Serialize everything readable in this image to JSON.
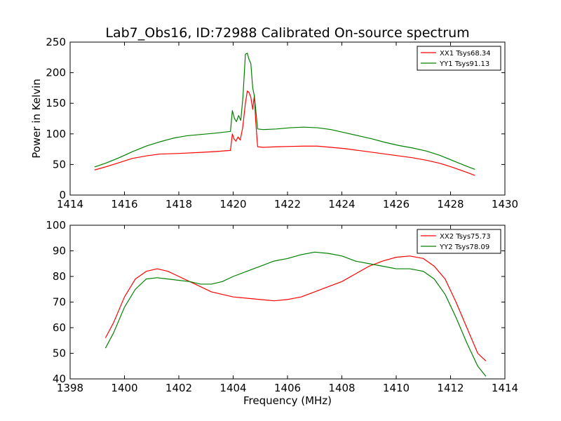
{
  "title": "Lab7_Obs16, ID:72988 Calibrated On-source spectrum",
  "chart_data": [
    {
      "type": "line",
      "ylabel": "Power in Kelvin",
      "xlabel": "",
      "xlim": [
        1414,
        1430
      ],
      "ylim": [
        0,
        250
      ],
      "xticks": [
        1414,
        1416,
        1418,
        1420,
        1422,
        1424,
        1426,
        1428,
        1430
      ],
      "yticks": [
        0,
        50,
        100,
        150,
        200,
        250
      ],
      "grid": false,
      "legend": "top-right",
      "series": [
        {
          "name": "XX1 Tsys68.34",
          "color": "#ff0000",
          "points": [
            [
              1414.9,
              41
            ],
            [
              1415.3,
              46
            ],
            [
              1415.8,
              53
            ],
            [
              1416.3,
              60
            ],
            [
              1416.8,
              64
            ],
            [
              1417.3,
              67
            ],
            [
              1418.0,
              68
            ],
            [
              1418.7,
              69.5
            ],
            [
              1419.3,
              71
            ],
            [
              1419.9,
              73
            ],
            [
              1419.97,
              100
            ],
            [
              1420.03,
              92
            ],
            [
              1420.1,
              88
            ],
            [
              1420.18,
              95
            ],
            [
              1420.26,
              90
            ],
            [
              1420.35,
              110
            ],
            [
              1420.45,
              150
            ],
            [
              1420.52,
              170
            ],
            [
              1420.58,
              168
            ],
            [
              1420.65,
              160
            ],
            [
              1420.72,
              140
            ],
            [
              1420.78,
              163
            ],
            [
              1420.83,
              120
            ],
            [
              1420.9,
              79
            ],
            [
              1421.1,
              78
            ],
            [
              1421.6,
              79
            ],
            [
              1422.1,
              79.5
            ],
            [
              1422.6,
              80
            ],
            [
              1423.1,
              80
            ],
            [
              1423.6,
              78
            ],
            [
              1424.1,
              76
            ],
            [
              1424.6,
              73
            ],
            [
              1425.1,
              70
            ],
            [
              1425.6,
              67
            ],
            [
              1426.1,
              64
            ],
            [
              1426.6,
              61
            ],
            [
              1427.1,
              57
            ],
            [
              1427.6,
              52
            ],
            [
              1428.1,
              45
            ],
            [
              1428.6,
              37
            ],
            [
              1428.9,
              32
            ]
          ]
        },
        {
          "name": "YY1 Tsys91.13",
          "color": "#008000",
          "points": [
            [
              1414.9,
              46
            ],
            [
              1415.3,
              52
            ],
            [
              1415.8,
              61
            ],
            [
              1416.3,
              71
            ],
            [
              1416.8,
              80
            ],
            [
              1417.3,
              87
            ],
            [
              1417.8,
              93
            ],
            [
              1418.3,
              97
            ],
            [
              1418.8,
              99
            ],
            [
              1419.3,
              101
            ],
            [
              1419.9,
              104
            ],
            [
              1419.97,
              138
            ],
            [
              1420.05,
              125
            ],
            [
              1420.12,
              120
            ],
            [
              1420.2,
              130
            ],
            [
              1420.28,
              122
            ],
            [
              1420.36,
              160
            ],
            [
              1420.45,
              230
            ],
            [
              1420.52,
              232
            ],
            [
              1420.58,
              222
            ],
            [
              1420.65,
              215
            ],
            [
              1420.72,
              175
            ],
            [
              1420.78,
              162
            ],
            [
              1420.83,
              140
            ],
            [
              1420.9,
              108
            ],
            [
              1421.1,
              107
            ],
            [
              1421.6,
              108
            ],
            [
              1422.1,
              110
            ],
            [
              1422.6,
              111
            ],
            [
              1423.1,
              110
            ],
            [
              1423.6,
              107
            ],
            [
              1424.1,
              102
            ],
            [
              1424.6,
              97
            ],
            [
              1425.1,
              92
            ],
            [
              1425.6,
              86
            ],
            [
              1426.1,
              81
            ],
            [
              1426.6,
              77
            ],
            [
              1427.1,
              72
            ],
            [
              1427.6,
              65
            ],
            [
              1428.1,
              56
            ],
            [
              1428.6,
              47
            ],
            [
              1428.9,
              42
            ]
          ]
        }
      ]
    },
    {
      "type": "line",
      "ylabel": "",
      "xlabel": "Frequency (MHz)",
      "xlim": [
        1398,
        1414
      ],
      "ylim": [
        40,
        100
      ],
      "xticks": [
        1398,
        1400,
        1402,
        1404,
        1406,
        1408,
        1410,
        1412,
        1414
      ],
      "yticks": [
        40,
        50,
        60,
        70,
        80,
        90,
        100
      ],
      "grid": false,
      "legend": "top-right",
      "series": [
        {
          "name": "XX2 Tsys75.73",
          "color": "#ff0000",
          "points": [
            [
              1399.3,
              56
            ],
            [
              1399.6,
              62
            ],
            [
              1400.0,
              72
            ],
            [
              1400.4,
              79
            ],
            [
              1400.8,
              82
            ],
            [
              1401.2,
              83
            ],
            [
              1401.6,
              82
            ],
            [
              1402.0,
              80
            ],
            [
              1402.4,
              78
            ],
            [
              1402.8,
              76
            ],
            [
              1403.2,
              74
            ],
            [
              1403.6,
              73
            ],
            [
              1404.0,
              72
            ],
            [
              1404.5,
              71.5
            ],
            [
              1405.0,
              71
            ],
            [
              1405.5,
              70.5
            ],
            [
              1406.0,
              71
            ],
            [
              1406.5,
              72
            ],
            [
              1407.0,
              74
            ],
            [
              1407.5,
              76
            ],
            [
              1408.0,
              78
            ],
            [
              1408.5,
              81
            ],
            [
              1409.0,
              84
            ],
            [
              1409.5,
              86
            ],
            [
              1410.0,
              87.5
            ],
            [
              1410.5,
              88
            ],
            [
              1411.0,
              87
            ],
            [
              1411.4,
              84
            ],
            [
              1411.8,
              79
            ],
            [
              1412.2,
              70
            ],
            [
              1412.6,
              60
            ],
            [
              1413.0,
              50
            ],
            [
              1413.3,
              47
            ]
          ]
        },
        {
          "name": "YY2 Tsys78.09",
          "color": "#008000",
          "points": [
            [
              1399.3,
              52
            ],
            [
              1399.6,
              58
            ],
            [
              1400.0,
              68
            ],
            [
              1400.4,
              75
            ],
            [
              1400.8,
              79
            ],
            [
              1401.2,
              79.5
            ],
            [
              1401.6,
              79
            ],
            [
              1402.0,
              78.5
            ],
            [
              1402.4,
              78
            ],
            [
              1402.8,
              77
            ],
            [
              1403.2,
              77
            ],
            [
              1403.6,
              78
            ],
            [
              1404.0,
              80
            ],
            [
              1404.5,
              82
            ],
            [
              1405.0,
              84
            ],
            [
              1405.5,
              86
            ],
            [
              1406.0,
              87
            ],
            [
              1406.5,
              88.5
            ],
            [
              1407.0,
              89.5
            ],
            [
              1407.5,
              89
            ],
            [
              1408.0,
              88
            ],
            [
              1408.5,
              86
            ],
            [
              1409.0,
              85
            ],
            [
              1409.5,
              84
            ],
            [
              1410.0,
              83
            ],
            [
              1410.5,
              83
            ],
            [
              1411.0,
              82
            ],
            [
              1411.4,
              79
            ],
            [
              1411.8,
              73
            ],
            [
              1412.2,
              64
            ],
            [
              1412.6,
              54
            ],
            [
              1413.0,
              45
            ],
            [
              1413.3,
              41
            ]
          ]
        }
      ]
    }
  ]
}
